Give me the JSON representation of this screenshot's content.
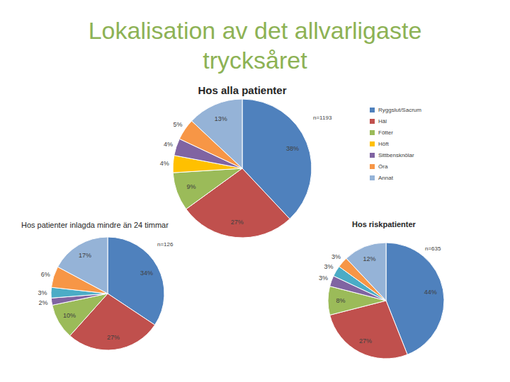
{
  "title": "Lokalisation av det allvarligaste trycksåret",
  "chart_data": [
    {
      "type": "pie",
      "title": "Hos alla patienter",
      "annotation": "n=1193",
      "categories": [
        "Ryggslut/Sacrum",
        "Häl",
        "Fötter",
        "Höft",
        "Sittbensknölar",
        "Öra",
        "Annat"
      ],
      "values": [
        38,
        27,
        9,
        4,
        4,
        5,
        13
      ],
      "value_labels": [
        "38%",
        "27%",
        "9%",
        "4%",
        "4%",
        "5%",
        "13%"
      ],
      "colors": [
        "#4f81bd",
        "#c0504d",
        "#9bbb59",
        "#ffc000",
        "#8064a2",
        "#f79646",
        "#95b3d7"
      ],
      "legend": "right"
    },
    {
      "type": "pie",
      "title": "Hos patienter inlagda mindre än 24 timmar",
      "annotation": "n=126",
      "categories": [
        "Ryggslut/Sacrum",
        "Häl",
        "Fötter",
        "Sittbensknölar",
        "Höft",
        "Öra",
        "Annat"
      ],
      "values": [
        34,
        27,
        10,
        2,
        3,
        6,
        17
      ],
      "value_labels": [
        "34%",
        "27%",
        "10%",
        "2%",
        "3%",
        "6%",
        "17%"
      ],
      "colors": [
        "#4f81bd",
        "#c0504d",
        "#9bbb59",
        "#8064a2",
        "#4bacc6",
        "#f79646",
        "#95b3d7"
      ]
    },
    {
      "type": "pie",
      "title": "Hos riskpatienter",
      "annotation": "n=635",
      "categories": [
        "Ryggslut/Sacrum",
        "Häl",
        "Fötter",
        "Sittbensknölar",
        "Höft",
        "Öra",
        "Annat"
      ],
      "values": [
        44,
        27,
        8,
        3,
        3,
        3,
        12
      ],
      "value_labels": [
        "44%",
        "27%",
        "8%",
        "3%",
        "3%",
        "3%",
        "12%"
      ],
      "colors": [
        "#4f81bd",
        "#c0504d",
        "#9bbb59",
        "#8064a2",
        "#4bacc6",
        "#f79646",
        "#95b3d7"
      ]
    }
  ]
}
